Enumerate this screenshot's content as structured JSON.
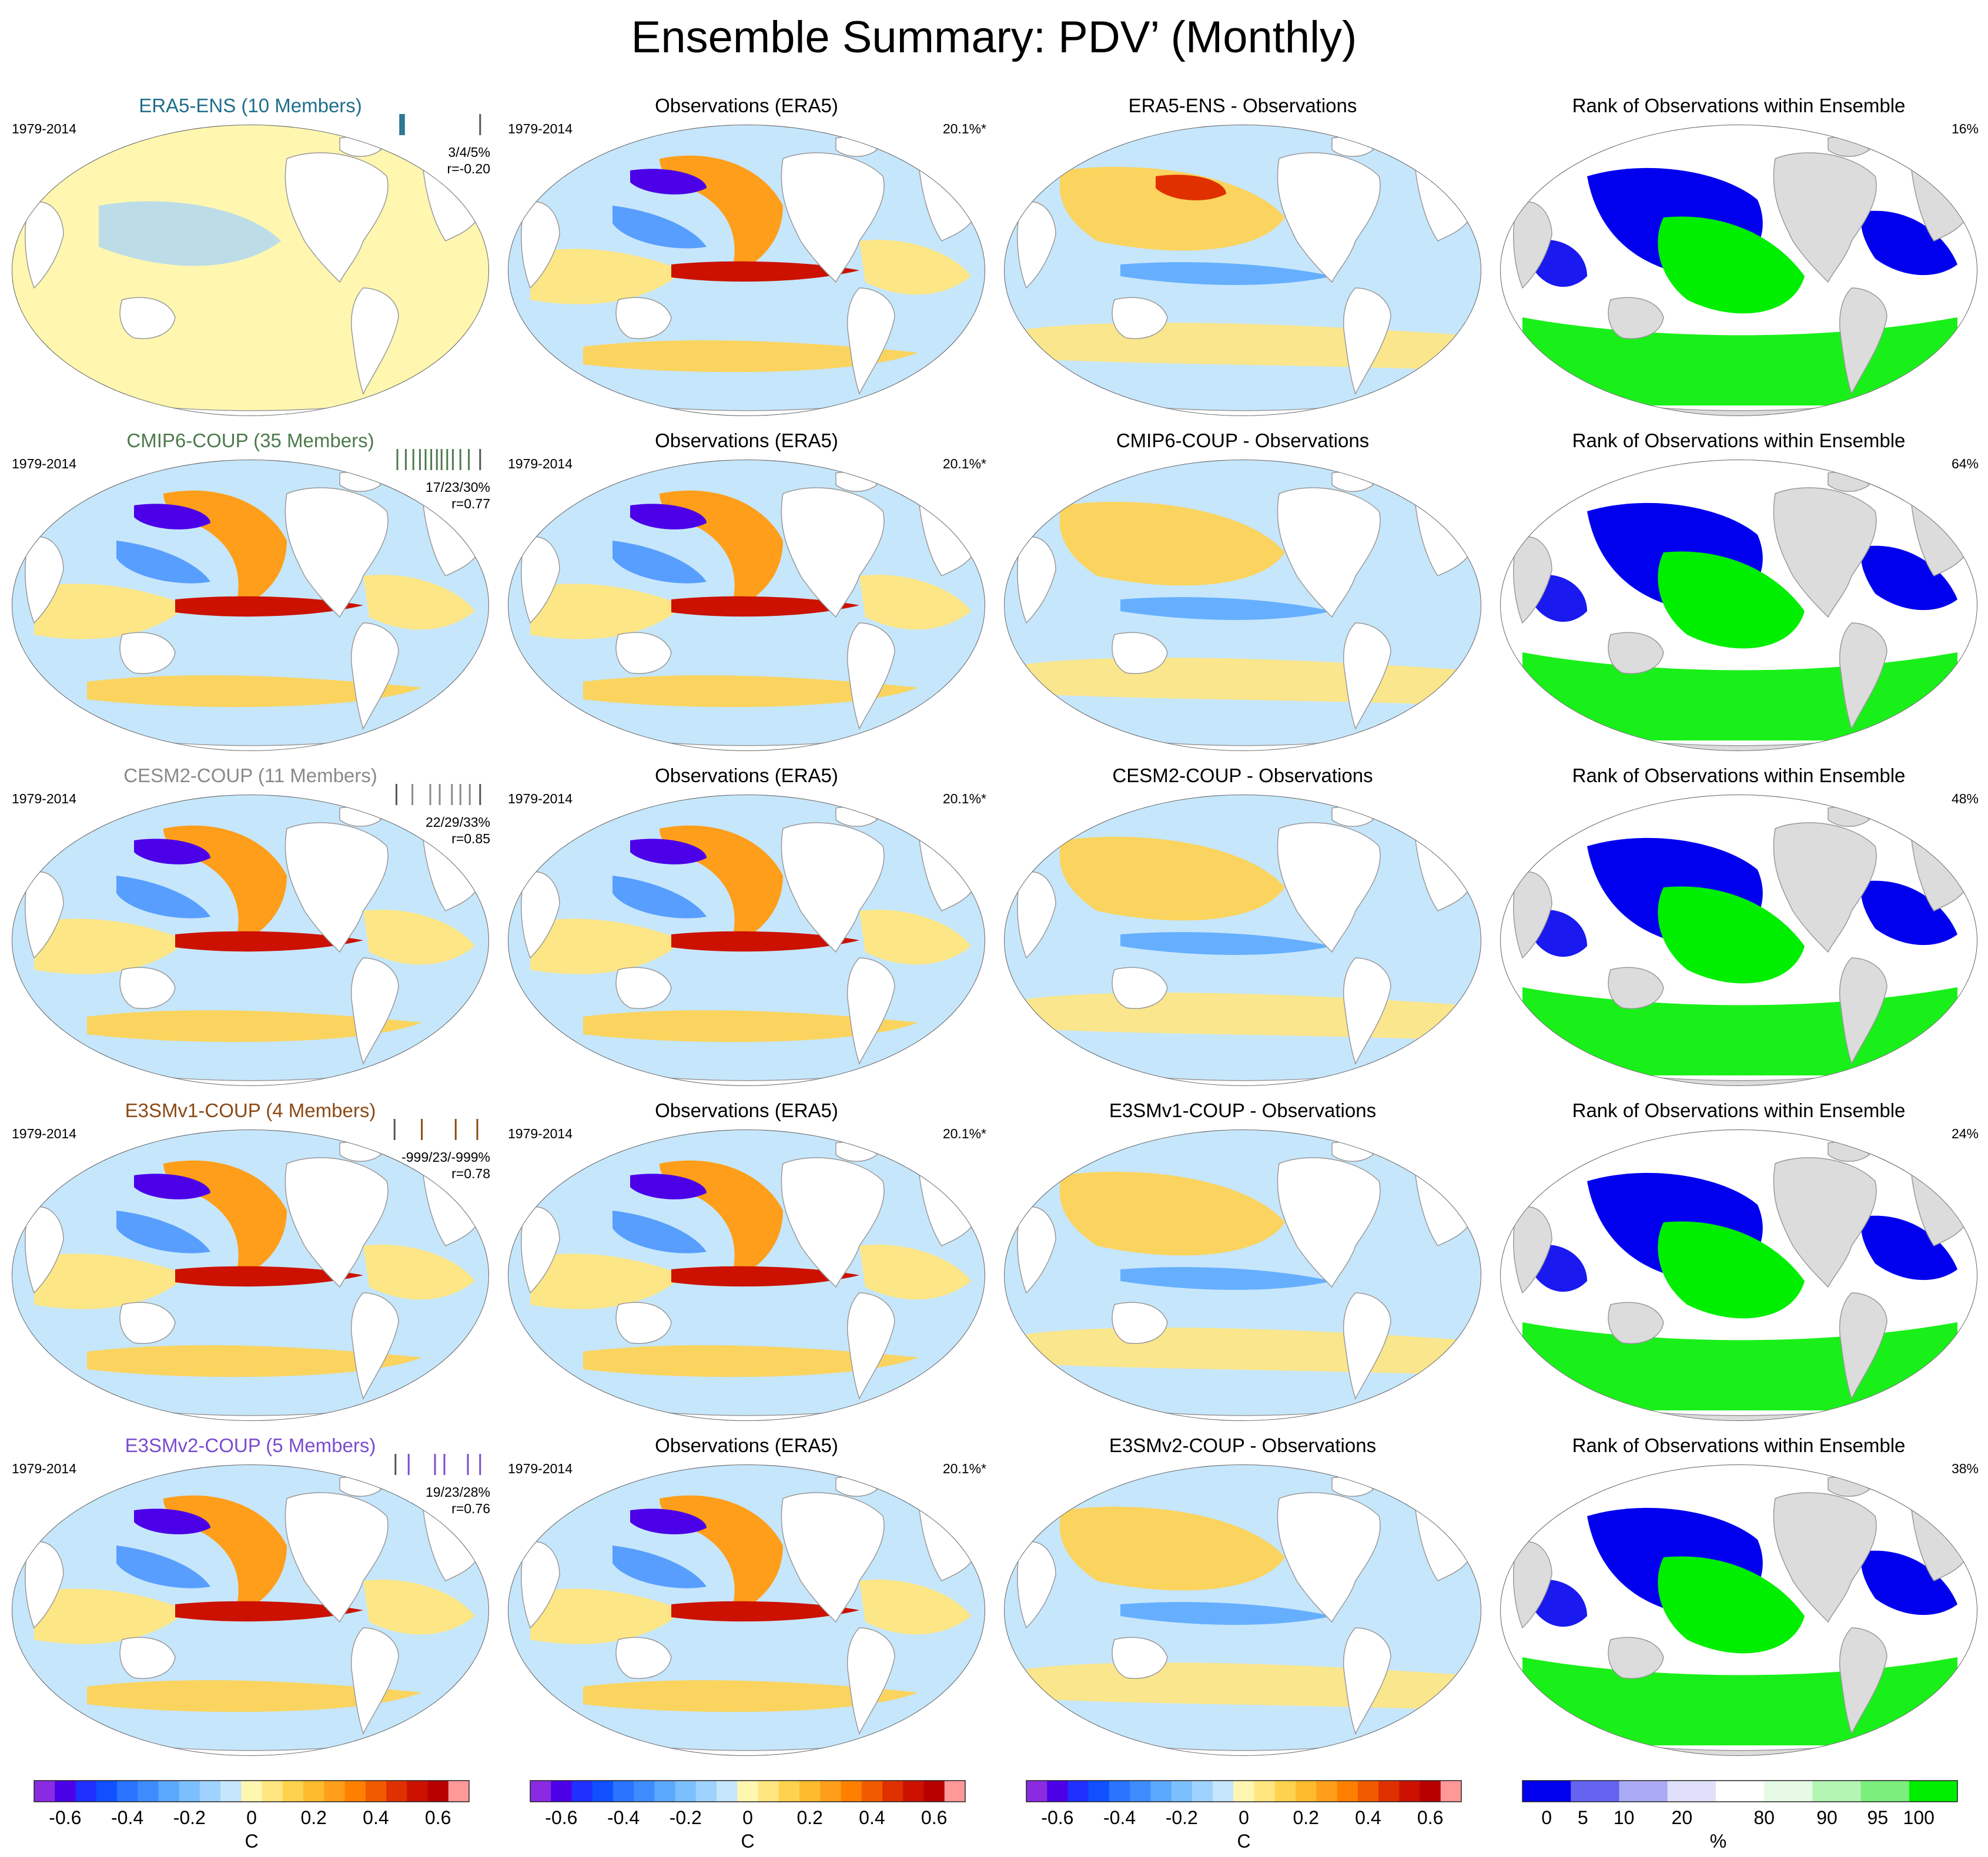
{
  "title": "Ensemble Summary: PDV’ (Monthly)",
  "period": "1979-2014",
  "obs_title": "Observations (ERA5)",
  "obs_percent": "20.1%*",
  "rank_title": "Rank of Observations within Ensemble",
  "rows": [
    {
      "model": "ERA5-ENS (10 Members)",
      "model_color": "#1f6f8b",
      "stats": "3/4/5%",
      "r": "r=-0.20",
      "diff_title": "ERA5-ENS - Observations",
      "rank_pct": "16%",
      "ticks": [
        {
          "p": 0.08,
          "c": "#1f6f8b"
        },
        {
          "p": 0.1,
          "c": "#1f6f8b"
        },
        {
          "p": 0.12,
          "c": "#1f6f8b"
        },
        {
          "p": 0.93,
          "c": "#555555"
        }
      ]
    },
    {
      "model": "CMIP6-COUP (35 Members)",
      "model_color": "#4d7a4d",
      "stats": "17/23/30%",
      "r": "r=0.77",
      "diff_title": "CMIP6-COUP - Observations",
      "rank_pct": "64%",
      "ticks": [
        {
          "p": 0.05,
          "c": "#4d7a4d"
        },
        {
          "p": 0.14,
          "c": "#4d7a4d"
        },
        {
          "p": 0.22,
          "c": "#4d7a4d"
        },
        {
          "p": 0.29,
          "c": "#4d7a4d"
        },
        {
          "p": 0.35,
          "c": "#4d7a4d"
        },
        {
          "p": 0.41,
          "c": "#4d7a4d"
        },
        {
          "p": 0.47,
          "c": "#4d7a4d"
        },
        {
          "p": 0.52,
          "c": "#4d7a4d"
        },
        {
          "p": 0.58,
          "c": "#4d7a4d"
        },
        {
          "p": 0.64,
          "c": "#4d7a4d"
        },
        {
          "p": 0.72,
          "c": "#4d7a4d"
        },
        {
          "p": 0.81,
          "c": "#4d7a4d"
        },
        {
          "p": 0.93,
          "c": "#555555"
        }
      ]
    },
    {
      "model": "CESM2-COUP (11 Members)",
      "model_color": "#8a8a8a",
      "stats": "22/29/33%",
      "r": "r=0.85",
      "diff_title": "CESM2-COUP - Observations",
      "rank_pct": "48%",
      "ticks": [
        {
          "p": 0.04,
          "c": "#555555"
        },
        {
          "p": 0.21,
          "c": "#8a8a8a"
        },
        {
          "p": 0.4,
          "c": "#8a8a8a"
        },
        {
          "p": 0.5,
          "c": "#8a8a8a"
        },
        {
          "p": 0.63,
          "c": "#8a8a8a"
        },
        {
          "p": 0.72,
          "c": "#8a8a8a"
        },
        {
          "p": 0.82,
          "c": "#8a8a8a"
        },
        {
          "p": 0.93,
          "c": "#555555"
        }
      ]
    },
    {
      "model": "E3SMv1-COUP (4 Members)",
      "model_color": "#8b4a16",
      "stats": "-999/23/-999%",
      "r": "r=0.78",
      "diff_title": "E3SMv1-COUP - Observations",
      "rank_pct": "24%",
      "ticks": [
        {
          "p": 0.02,
          "c": "#555555"
        },
        {
          "p": 0.31,
          "c": "#8b4a16"
        },
        {
          "p": 0.67,
          "c": "#8b4a16"
        },
        {
          "p": 0.9,
          "c": "#8b4a16"
        }
      ]
    },
    {
      "model": "E3SMv2-COUP (5 Members)",
      "model_color": "#7b4ccf",
      "stats": "19/23/28%",
      "r": "r=0.76",
      "diff_title": "E3SMv2-COUP - Observations",
      "rank_pct": "38%",
      "ticks": [
        {
          "p": 0.03,
          "c": "#555555"
        },
        {
          "p": 0.17,
          "c": "#7b4ccf"
        },
        {
          "p": 0.45,
          "c": "#7b4ccf"
        },
        {
          "p": 0.55,
          "c": "#7b4ccf"
        },
        {
          "p": 0.8,
          "c": "#7b4ccf"
        },
        {
          "p": 0.93,
          "c": "#7b4ccf"
        }
      ]
    }
  ],
  "colorbar": {
    "colors": [
      "#8a2be2",
      "#4b00e8",
      "#1e2fff",
      "#1050ff",
      "#2a74ff",
      "#3c8cff",
      "#5ba8ff",
      "#7cbfff",
      "#a0d2ff",
      "#c6e6fb",
      "#fff7b0",
      "#ffe680",
      "#ffd24d",
      "#ffbb2e",
      "#ff9e1a",
      "#ff8000",
      "#f25a00",
      "#e03000",
      "#cc1100",
      "#b80000",
      "#ff9999"
    ],
    "ticks": [
      "-0.6",
      "-0.4",
      "-0.2",
      "0",
      "0.2",
      "0.4",
      "0.6"
    ],
    "tick_values": [
      -0.6,
      -0.4,
      -0.2,
      0,
      0.2,
      0.4,
      0.6
    ],
    "range": [
      -0.7,
      0.7
    ],
    "unit": "C"
  },
  "rank_colorbar": {
    "colors": [
      "#0000ee",
      "#6464f0",
      "#aaaaf5",
      "#e0e0fa",
      "#ffffff",
      "#e6fae6",
      "#b4f5b4",
      "#7cee7c",
      "#00ee00"
    ],
    "ticks": [
      "0",
      "5",
      "10",
      "20",
      "80",
      "90",
      "95",
      "100"
    ],
    "unit": "%"
  },
  "map_kinds": [
    "model",
    "obs",
    "diff",
    "rank"
  ]
}
